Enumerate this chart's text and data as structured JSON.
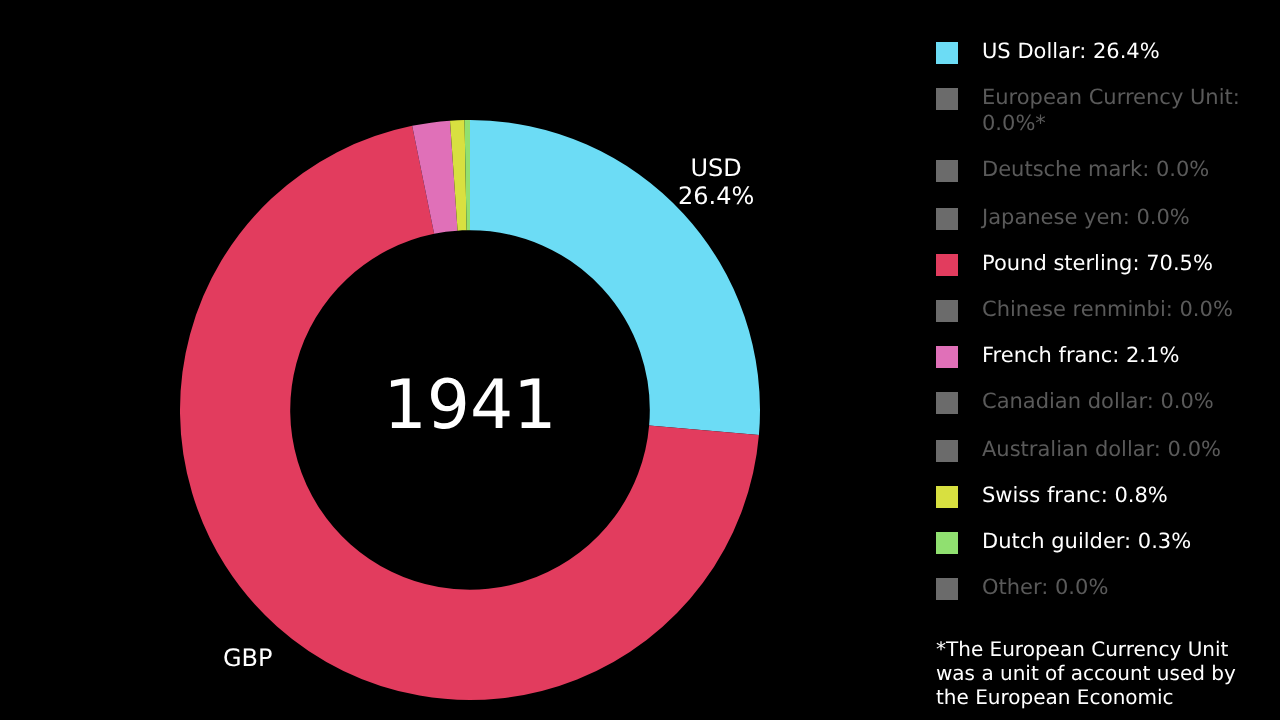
{
  "chart_data": {
    "type": "donut",
    "title": "1941",
    "categories": [
      "US Dollar",
      "European Currency Unit",
      "Deutsche mark",
      "Japanese yen",
      "Pound sterling",
      "Chinese renminbi",
      "French franc",
      "Canadian dollar",
      "Australian dollar",
      "Swiss franc",
      "Dutch guilder",
      "Other"
    ],
    "values": [
      26.4,
      0.0,
      0.0,
      0.0,
      70.5,
      0.0,
      2.1,
      0.0,
      0.0,
      0.8,
      0.3,
      0.0
    ],
    "value_labels": [
      "26.4%",
      "0.0%*",
      "0.0%",
      "0.0%",
      "70.5%",
      "0.0%",
      "2.1%",
      "0.0%",
      "0.0%",
      "0.8%",
      "0.3%",
      "0.0%"
    ],
    "colors": [
      "#6cdcf5",
      "#6b6b6b",
      "#6b6b6b",
      "#6b6b6b",
      "#e23c5e",
      "#6b6b6b",
      "#e070b8",
      "#6b6b6b",
      "#6b6b6b",
      "#d8e040",
      "#90e070",
      "#6b6b6b"
    ],
    "legend": "right",
    "annotations": [
      {
        "text": "USD",
        "x": "US Dollar"
      },
      {
        "text": "26.4%",
        "x": "US Dollar"
      },
      {
        "text": "GBP",
        "x": "Pound sterling"
      },
      "*The European Currency Unit was a unit of account used by the European Economic"
    ]
  }
}
